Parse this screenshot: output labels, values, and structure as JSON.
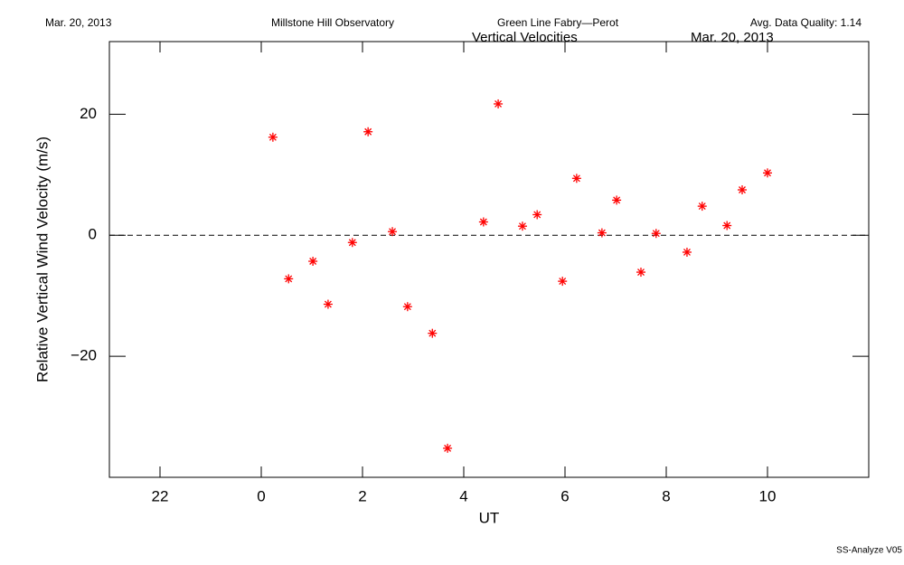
{
  "chart_data": {
    "type": "scatter",
    "header": [
      "Mar. 20, 2013",
      "Millstone Hill Observatory",
      "Green Line Fabry—Perot",
      "Avg. Data Quality: 1.14"
    ],
    "title": "Vertical Velocities",
    "subtitle": "Mar. 20, 2013",
    "x_label": "UT",
    "y_label": "Relative Vertical Wind Velocity (m/s)",
    "footer": "SS-Analyze V05",
    "xlim": [
      -3,
      12
    ],
    "xticks": [
      {
        "value": -2,
        "label": "22"
      },
      0,
      2,
      4,
      6,
      8,
      10
    ],
    "ylim": [
      -40,
      32
    ],
    "yticks": [
      {
        "value": -20,
        "label": "−20"
      },
      0,
      20
    ],
    "reference_line": 0,
    "series": [
      {
        "color": "#ff0000",
        "x": [
          0.23,
          0.54,
          1.02,
          1.32,
          1.8,
          2.11,
          2.59,
          2.89,
          3.38,
          3.68,
          4.39,
          4.68,
          5.16,
          5.45,
          5.95,
          6.23,
          6.73,
          7.02,
          7.5,
          7.8,
          8.41,
          8.71,
          9.2,
          9.5,
          10.0
        ],
        "values": [
          16.2,
          -7.2,
          -4.3,
          -11.4,
          -1.2,
          17.1,
          0.6,
          -11.8,
          -16.2,
          -35.2,
          2.2,
          21.7,
          1.5,
          3.4,
          -7.6,
          9.4,
          0.4,
          5.8,
          -6.1,
          0.3,
          -2.8,
          4.8,
          1.6,
          7.5,
          10.3
        ]
      }
    ]
  }
}
